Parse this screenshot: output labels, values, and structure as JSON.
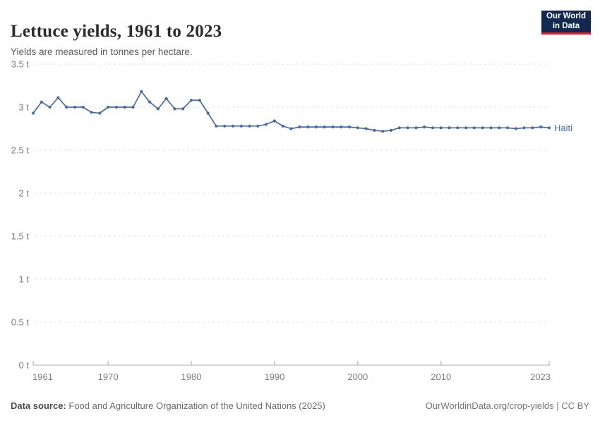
{
  "header": {
    "title": "Lettuce yields, 1961 to 2023",
    "subtitle": "Yields are measured in tonnes per hectare.",
    "logo": {
      "line1": "Our World",
      "line2": "in Data"
    }
  },
  "chart_data": {
    "type": "line",
    "title": "Lettuce yields, 1961 to 2023",
    "ylabel": "tonnes per hectare",
    "xlabel": "",
    "unit": "t",
    "grid": "horizontal-dashed",
    "legend_position": "right-of-line-end",
    "xlim": [
      1961,
      2023
    ],
    "ylim": [
      0,
      3.5
    ],
    "xticks": [
      1961,
      1970,
      1980,
      1990,
      2000,
      2010,
      2023
    ],
    "yticks": [
      {
        "value": 0,
        "label": "0 t"
      },
      {
        "value": 0.5,
        "label": "0.5 t"
      },
      {
        "value": 1,
        "label": "1 t"
      },
      {
        "value": 1.5,
        "label": "1.5 t"
      },
      {
        "value": 2,
        "label": "2 t"
      },
      {
        "value": 2.5,
        "label": "2.5 t"
      },
      {
        "value": 3,
        "label": "3 t"
      },
      {
        "value": 3.5,
        "label": "3.5 t"
      }
    ],
    "x": [
      1961,
      1962,
      1963,
      1964,
      1965,
      1966,
      1967,
      1968,
      1969,
      1970,
      1971,
      1972,
      1973,
      1974,
      1975,
      1976,
      1977,
      1978,
      1979,
      1980,
      1981,
      1982,
      1983,
      1984,
      1985,
      1986,
      1987,
      1988,
      1989,
      1990,
      1991,
      1992,
      1993,
      1994,
      1995,
      1996,
      1997,
      1998,
      1999,
      2000,
      2001,
      2002,
      2003,
      2004,
      2005,
      2006,
      2007,
      2008,
      2009,
      2010,
      2011,
      2012,
      2013,
      2014,
      2015,
      2016,
      2017,
      2018,
      2019,
      2020,
      2021,
      2022,
      2023
    ],
    "series": [
      {
        "name": "Haiti",
        "color": "#4c6a9c",
        "values": [
          2.93,
          3.06,
          3.0,
          3.11,
          3.0,
          3.0,
          3.0,
          2.94,
          2.93,
          3.0,
          3.0,
          3.0,
          3.0,
          3.18,
          3.06,
          2.98,
          3.1,
          2.98,
          2.98,
          3.08,
          3.08,
          2.93,
          2.78,
          2.78,
          2.78,
          2.78,
          2.78,
          2.78,
          2.8,
          2.84,
          2.78,
          2.75,
          2.77,
          2.77,
          2.77,
          2.77,
          2.77,
          2.77,
          2.77,
          2.76,
          2.75,
          2.73,
          2.72,
          2.73,
          2.76,
          2.76,
          2.76,
          2.77,
          2.76,
          2.76,
          2.76,
          2.76,
          2.76,
          2.76,
          2.76,
          2.76,
          2.76,
          2.76,
          2.75,
          2.76,
          2.76,
          2.77,
          2.76
        ]
      }
    ]
  },
  "footer": {
    "source_label": "Data source:",
    "source_text": "Food and Agriculture Organization of the United Nations (2025)",
    "url": "OurWorldinData.org/crop-yields",
    "separator": "|",
    "license": "CC BY"
  },
  "colors": {
    "accent_line": "#4c6a9c",
    "grid": "#dcdcdc",
    "axis": "#a8a8a8",
    "tick_label": "#7d7d7d",
    "logo_bg": "#12294f",
    "logo_accent": "#d8232f"
  }
}
